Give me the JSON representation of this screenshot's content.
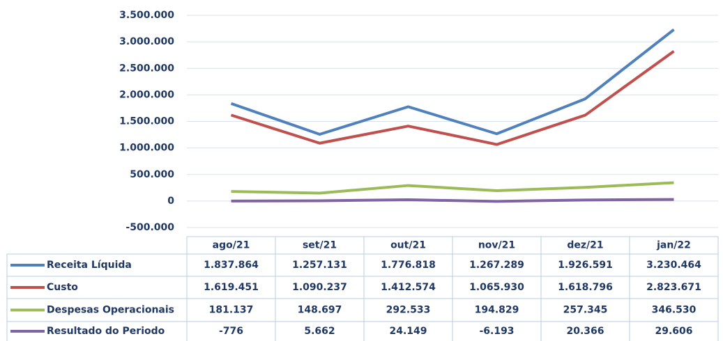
{
  "chart_data": {
    "type": "line",
    "categories": [
      "ago/21",
      "set/21",
      "out/21",
      "nov/21",
      "dez/21",
      "jan/22"
    ],
    "series": [
      {
        "name": "Receita Líquida",
        "color": "#4f81bd",
        "values": [
          1837864,
          1257131,
          1776818,
          1267289,
          1926591,
          3230464
        ],
        "value_labels": [
          "1.837.864",
          "1.257.131",
          "1.776.818",
          "1.267.289",
          "1.926.591",
          "3.230.464"
        ]
      },
      {
        "name": "Custo",
        "color": "#c0504d",
        "values": [
          1619451,
          1090237,
          1412574,
          1065930,
          1618796,
          2823671
        ],
        "value_labels": [
          "1.619.451",
          "1.090.237",
          "1.412.574",
          "1.065.930",
          "1.618.796",
          "2.823.671"
        ]
      },
      {
        "name": "Despesas Operacionais",
        "color": "#9bbb59",
        "values": [
          181137,
          148697,
          292533,
          194829,
          257345,
          346530
        ],
        "value_labels": [
          "181.137",
          "148.697",
          "292.533",
          "194.829",
          "257.345",
          "346.530"
        ]
      },
      {
        "name": "Resultado do Periodo",
        "color": "#8064a2",
        "values": [
          -776,
          5662,
          24149,
          -6193,
          20366,
          29606
        ],
        "value_labels": [
          "-776",
          "5.662",
          "24.149",
          "-6.193",
          "20.366",
          "29.606"
        ]
      }
    ],
    "ylim": [
      -500000,
      3500000
    ],
    "yticks": [
      {
        "value": -500000,
        "label": "-500.000"
      },
      0,
      {
        "value": 500000,
        "label": "500.000"
      },
      {
        "value": 1000000,
        "label": "1.000.000"
      },
      {
        "value": 1500000,
        "label": "1.500.000"
      },
      {
        "value": 2000000,
        "label": "2.000.000"
      },
      {
        "value": 2500000,
        "label": "2.500.000"
      },
      {
        "value": 3000000,
        "label": "3.000.000"
      },
      {
        "value": 3500000,
        "label": "3.500.000"
      }
    ],
    "grid": true
  }
}
